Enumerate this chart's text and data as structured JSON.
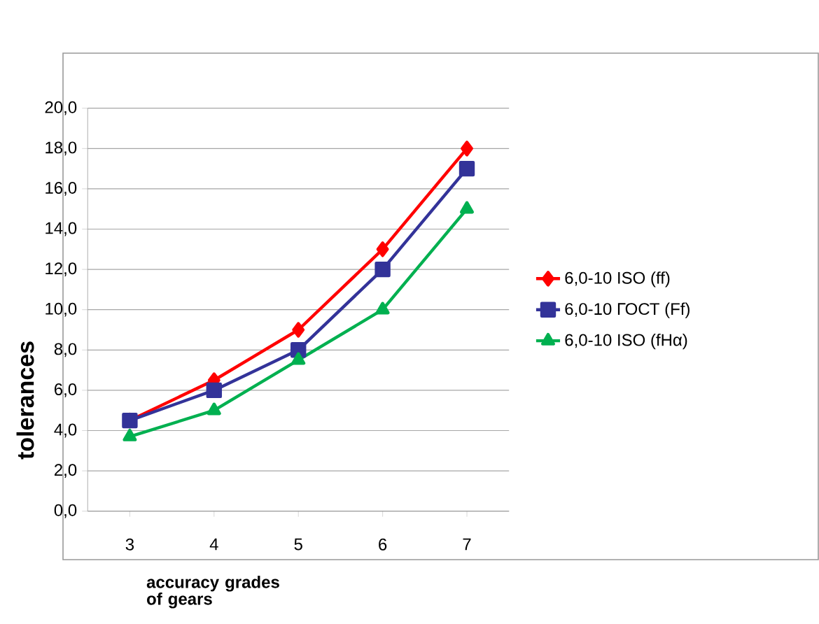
{
  "chart_data": {
    "type": "line",
    "annotations": [
      "accuracy grades of gears"
    ],
    "ylabel": "tolerances",
    "categories": [
      "3",
      "4",
      "5",
      "6",
      "7"
    ],
    "series": [
      {
        "name": "6,0-10 ISO (ff)",
        "color": "#ff0000",
        "marker": "diamond",
        "values": [
          4.5,
          6.5,
          9,
          13,
          18
        ]
      },
      {
        "name": "6,0-10 ГОСТ (Ff)",
        "color": "#333399",
        "marker": "square",
        "values": [
          4.5,
          6,
          8,
          12,
          17
        ]
      },
      {
        "name": "6,0-10 ISO (fHα)",
        "color": "#00b050",
        "marker": "triangle",
        "values": [
          3.7,
          5,
          7.5,
          10,
          15
        ]
      }
    ],
    "ylim": [
      0,
      20
    ],
    "yticks": [
      {
        "value": 0,
        "label": "0,0"
      },
      {
        "value": 2,
        "label": "2,0"
      },
      {
        "value": 4,
        "label": "4,0"
      },
      {
        "value": 6,
        "label": "6,0"
      },
      {
        "value": 8,
        "label": "8,0"
      },
      {
        "value": 10,
        "label": "10,0"
      },
      {
        "value": 12,
        "label": "12,0"
      },
      {
        "value": 14,
        "label": "14,0"
      },
      {
        "value": 16,
        "label": "16,0"
      },
      {
        "value": 18,
        "label": "18,0"
      },
      {
        "value": 20,
        "label": "20,0"
      }
    ],
    "grid": "y",
    "legend": "right"
  }
}
